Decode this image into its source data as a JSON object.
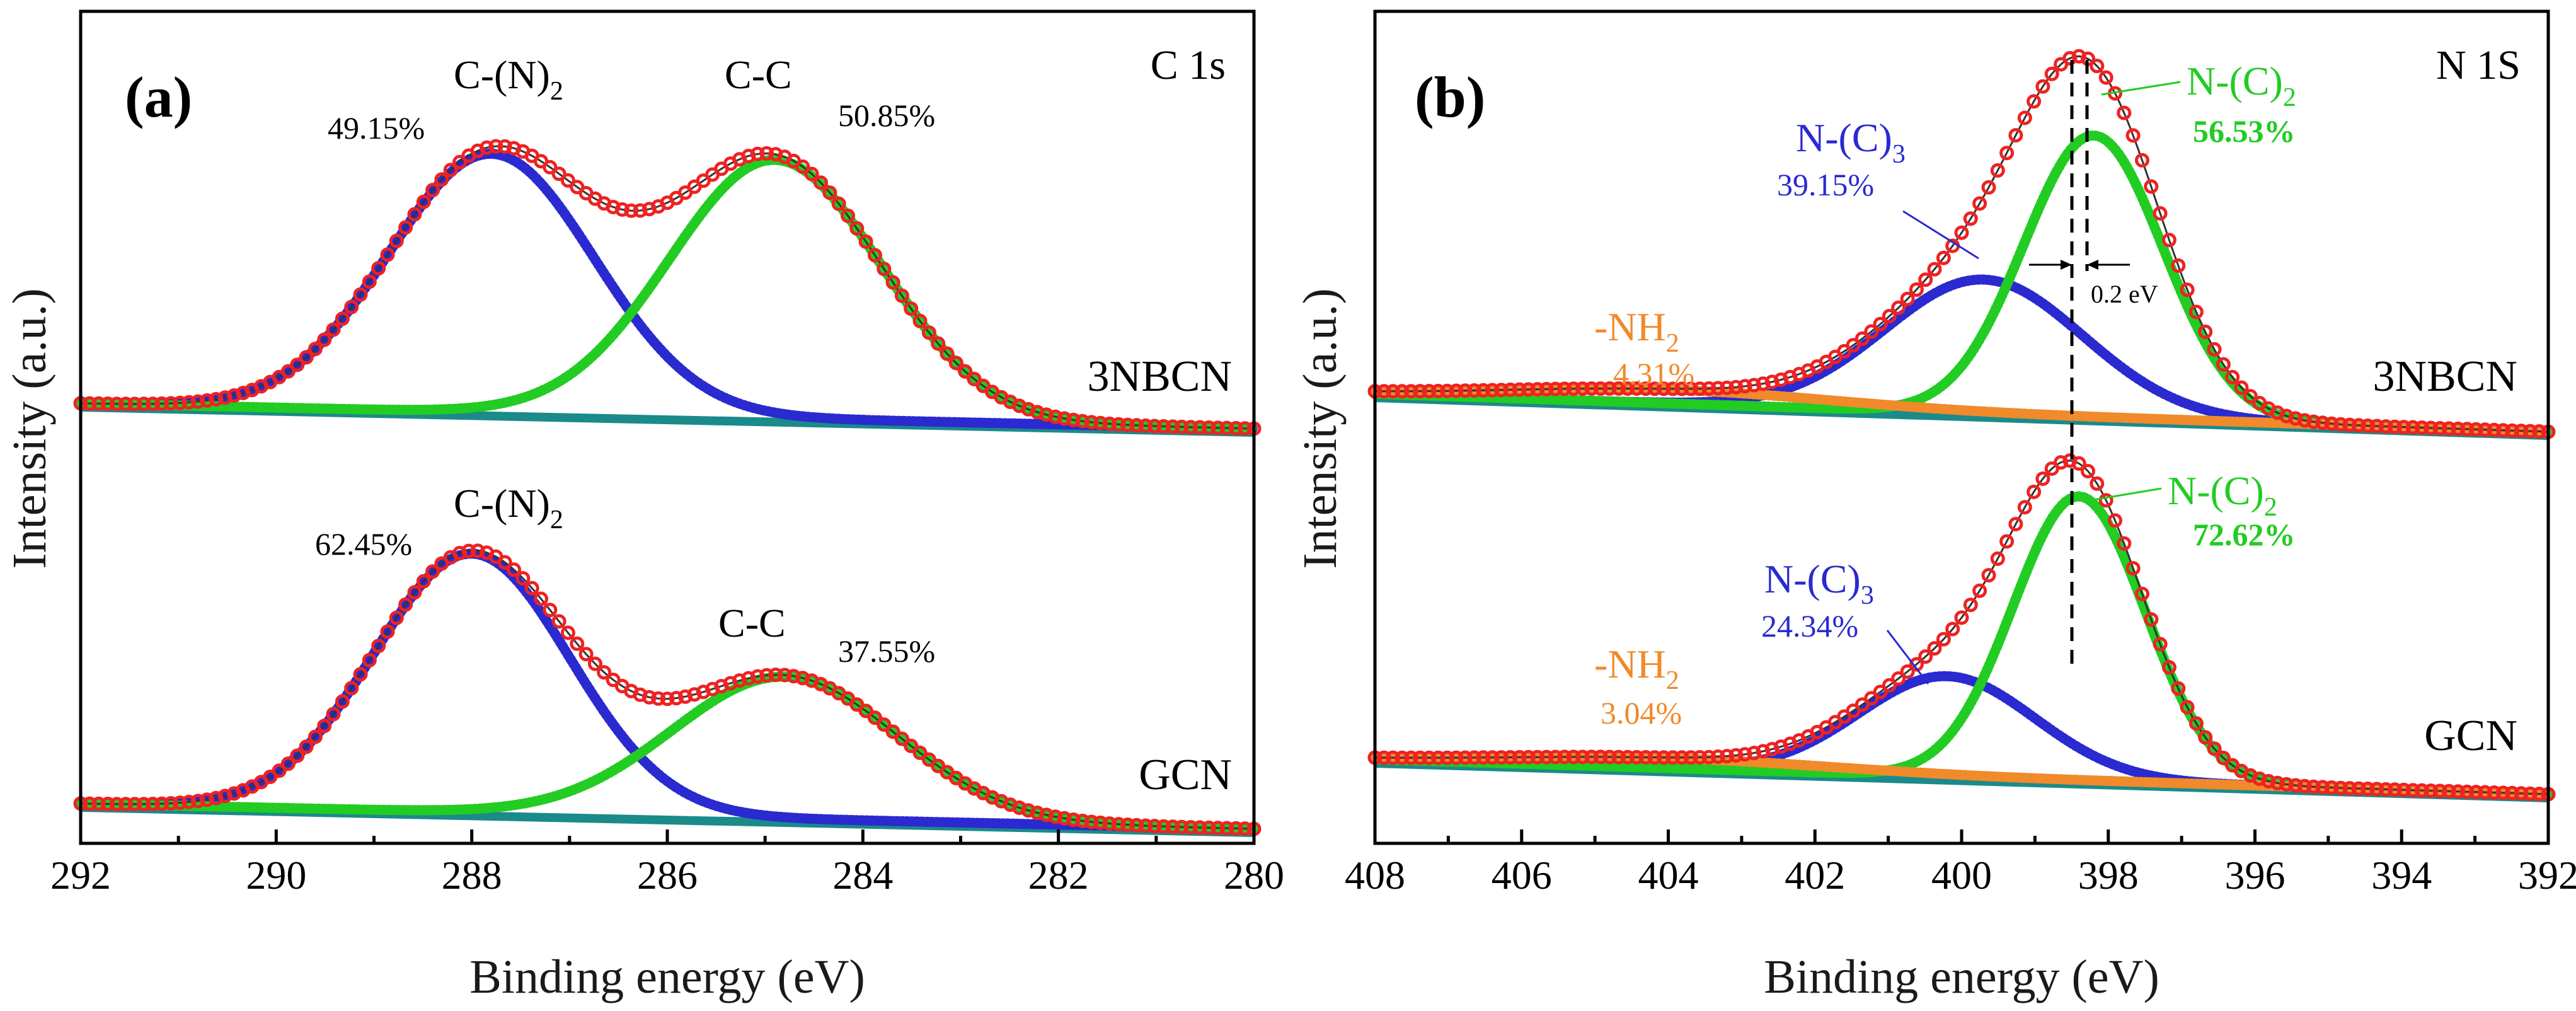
{
  "chart_data": [
    {
      "type": "line",
      "panel": "(a)",
      "spectrum": "C 1s",
      "xlabel": "Binding energy (eV)",
      "ylabel": "Intensity (a.u.)",
      "xlim": [
        292,
        280
      ],
      "x_reversed": true,
      "xticks": [
        "292",
        "290",
        "288",
        "286",
        "284",
        "282",
        "280"
      ],
      "samples": [
        {
          "name": "3NBCN",
          "components": [
            {
              "name": "C-(N)",
              "sub": "2",
              "pct": "49.15%",
              "center": 287.8,
              "height": 1.0,
              "sigma": 1.05,
              "color": "#2a2ad0"
            },
            {
              "name": "C-C",
              "sub": "",
              "pct": "50.85%",
              "center": 284.9,
              "height": 1.0,
              "sigma": 1.08,
              "color": "#22cc22"
            }
          ]
        },
        {
          "name": "GCN",
          "components": [
            {
              "name": "C-(N)",
              "sub": "2",
              "pct": "62.45%",
              "center": 288.0,
              "height": 1.0,
              "sigma": 1.0,
              "color": "#2a2ad0"
            },
            {
              "name": "C-C",
              "sub": "",
              "pct": "37.55%",
              "center": 284.8,
              "height": 0.55,
              "sigma": 1.15,
              "color": "#22cc22"
            }
          ]
        }
      ],
      "envelope_color": "#ee2222",
      "background_color": "#1a8a8a"
    },
    {
      "type": "line",
      "panel": "(b)",
      "spectrum": "N 1S",
      "xlabel": "Binding energy (eV)",
      "ylabel": "Intensity (a.u.)",
      "xlim": [
        408,
        392
      ],
      "x_reversed": true,
      "xticks": [
        "408",
        "406",
        "404",
        "402",
        "400",
        "398",
        "396",
        "394",
        "392"
      ],
      "annotation": "0.2 eV",
      "samples": [
        {
          "name": "3NBCN",
          "components": [
            {
              "name": "N-(C)",
              "sub": "3",
              "pct": "39.15%",
              "center": 399.7,
              "height": 0.39,
              "sigma": 1.35,
              "color": "#2a2ad0"
            },
            {
              "name": "N-(C)",
              "sub": "2",
              "pct": "56.53%",
              "center": 398.2,
              "height": 0.82,
              "sigma": 0.95,
              "color": "#22cc22"
            },
            {
              "name": "-NH",
              "sub": "2",
              "pct": "4.31%",
              "center": 404.0,
              "height": 0.04,
              "sigma": 2.2,
              "color": "#f08a2a"
            }
          ]
        },
        {
          "name": "GCN",
          "components": [
            {
              "name": "N-(C)",
              "sub": "3",
              "pct": "24.34%",
              "center": 400.2,
              "height": 0.3,
              "sigma": 1.2,
              "color": "#2a2ad0"
            },
            {
              "name": "N-(C)",
              "sub": "2",
              "pct": "72.62%",
              "center": 398.4,
              "height": 0.85,
              "sigma": 0.9,
              "color": "#22cc22"
            },
            {
              "name": "-NH",
              "sub": "2",
              "pct": "3.04%",
              "center": 404.0,
              "height": 0.03,
              "sigma": 2.2,
              "color": "#f08a2a"
            }
          ]
        }
      ],
      "envelope_color": "#ee2222",
      "background_color": "#1a8a8a"
    }
  ]
}
